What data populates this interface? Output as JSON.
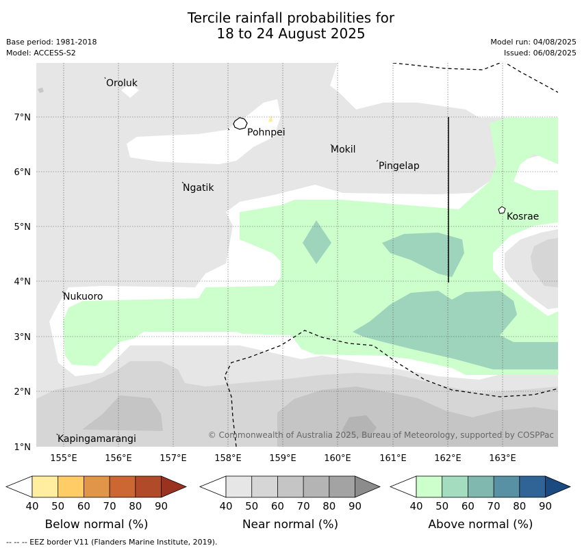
{
  "header": {
    "title_line1": "Tercile rainfall probabilities for",
    "title_line2": "18 to 24 August 2025",
    "base_period": "Base period: 1981-2018",
    "model": "Model: ACCESS-S2",
    "model_run": "Model run: 04/08/2025",
    "issued": "Issued: 06/08/2025"
  },
  "map": {
    "lat_labels": [
      "7°N",
      "6°N",
      "5°N",
      "4°N",
      "3°N",
      "2°N",
      "1°N"
    ],
    "lon_labels": [
      "155°E",
      "156°E",
      "157°E",
      "158°E",
      "159°E",
      "160°E",
      "161°E",
      "162°E",
      "163°E"
    ],
    "places": [
      "Oroluk",
      "Pohnpei",
      "Mokil",
      "Pingelap",
      "Ngatik",
      "Kosrae",
      "Nukuoro",
      "Kapingamarangi"
    ],
    "copyright": "© Commonwealth of Australia 2025, Bureau of Meteorology, supported by COSPPac",
    "colors": {
      "near_40": "#e6e6e6",
      "near_50": "#d6d6d6",
      "near_60": "#c5c5c5",
      "above_40": "#ccffcc",
      "above_50": "#9ed4bc",
      "below_40": "#ffeb99"
    }
  },
  "legends": [
    {
      "title": "Below normal (%)",
      "ticks": [
        "40",
        "50",
        "60",
        "70",
        "80",
        "90"
      ],
      "colors": [
        "#ffeea0",
        "#ffcc66",
        "#e09548",
        "#cc6633",
        "#b04a28",
        "#9a3220"
      ]
    },
    {
      "title": "Near normal (%)",
      "ticks": [
        "40",
        "50",
        "60",
        "70",
        "80",
        "90"
      ],
      "colors": [
        "#e6e6e6",
        "#d6d6d6",
        "#c5c5c5",
        "#b4b4b4",
        "#a3a3a3",
        "#8c8c8c"
      ]
    },
    {
      "title": "Above normal (%)",
      "ticks": [
        "40",
        "50",
        "60",
        "70",
        "80",
        "90"
      ],
      "colors": [
        "#ccffcc",
        "#a3dcbf",
        "#80b8b0",
        "#5890a4",
        "#316496",
        "#1a4a80"
      ]
    }
  ],
  "footnote": "--  --  -- EEZ border V11 (Flanders Marine Institute, 2019)."
}
